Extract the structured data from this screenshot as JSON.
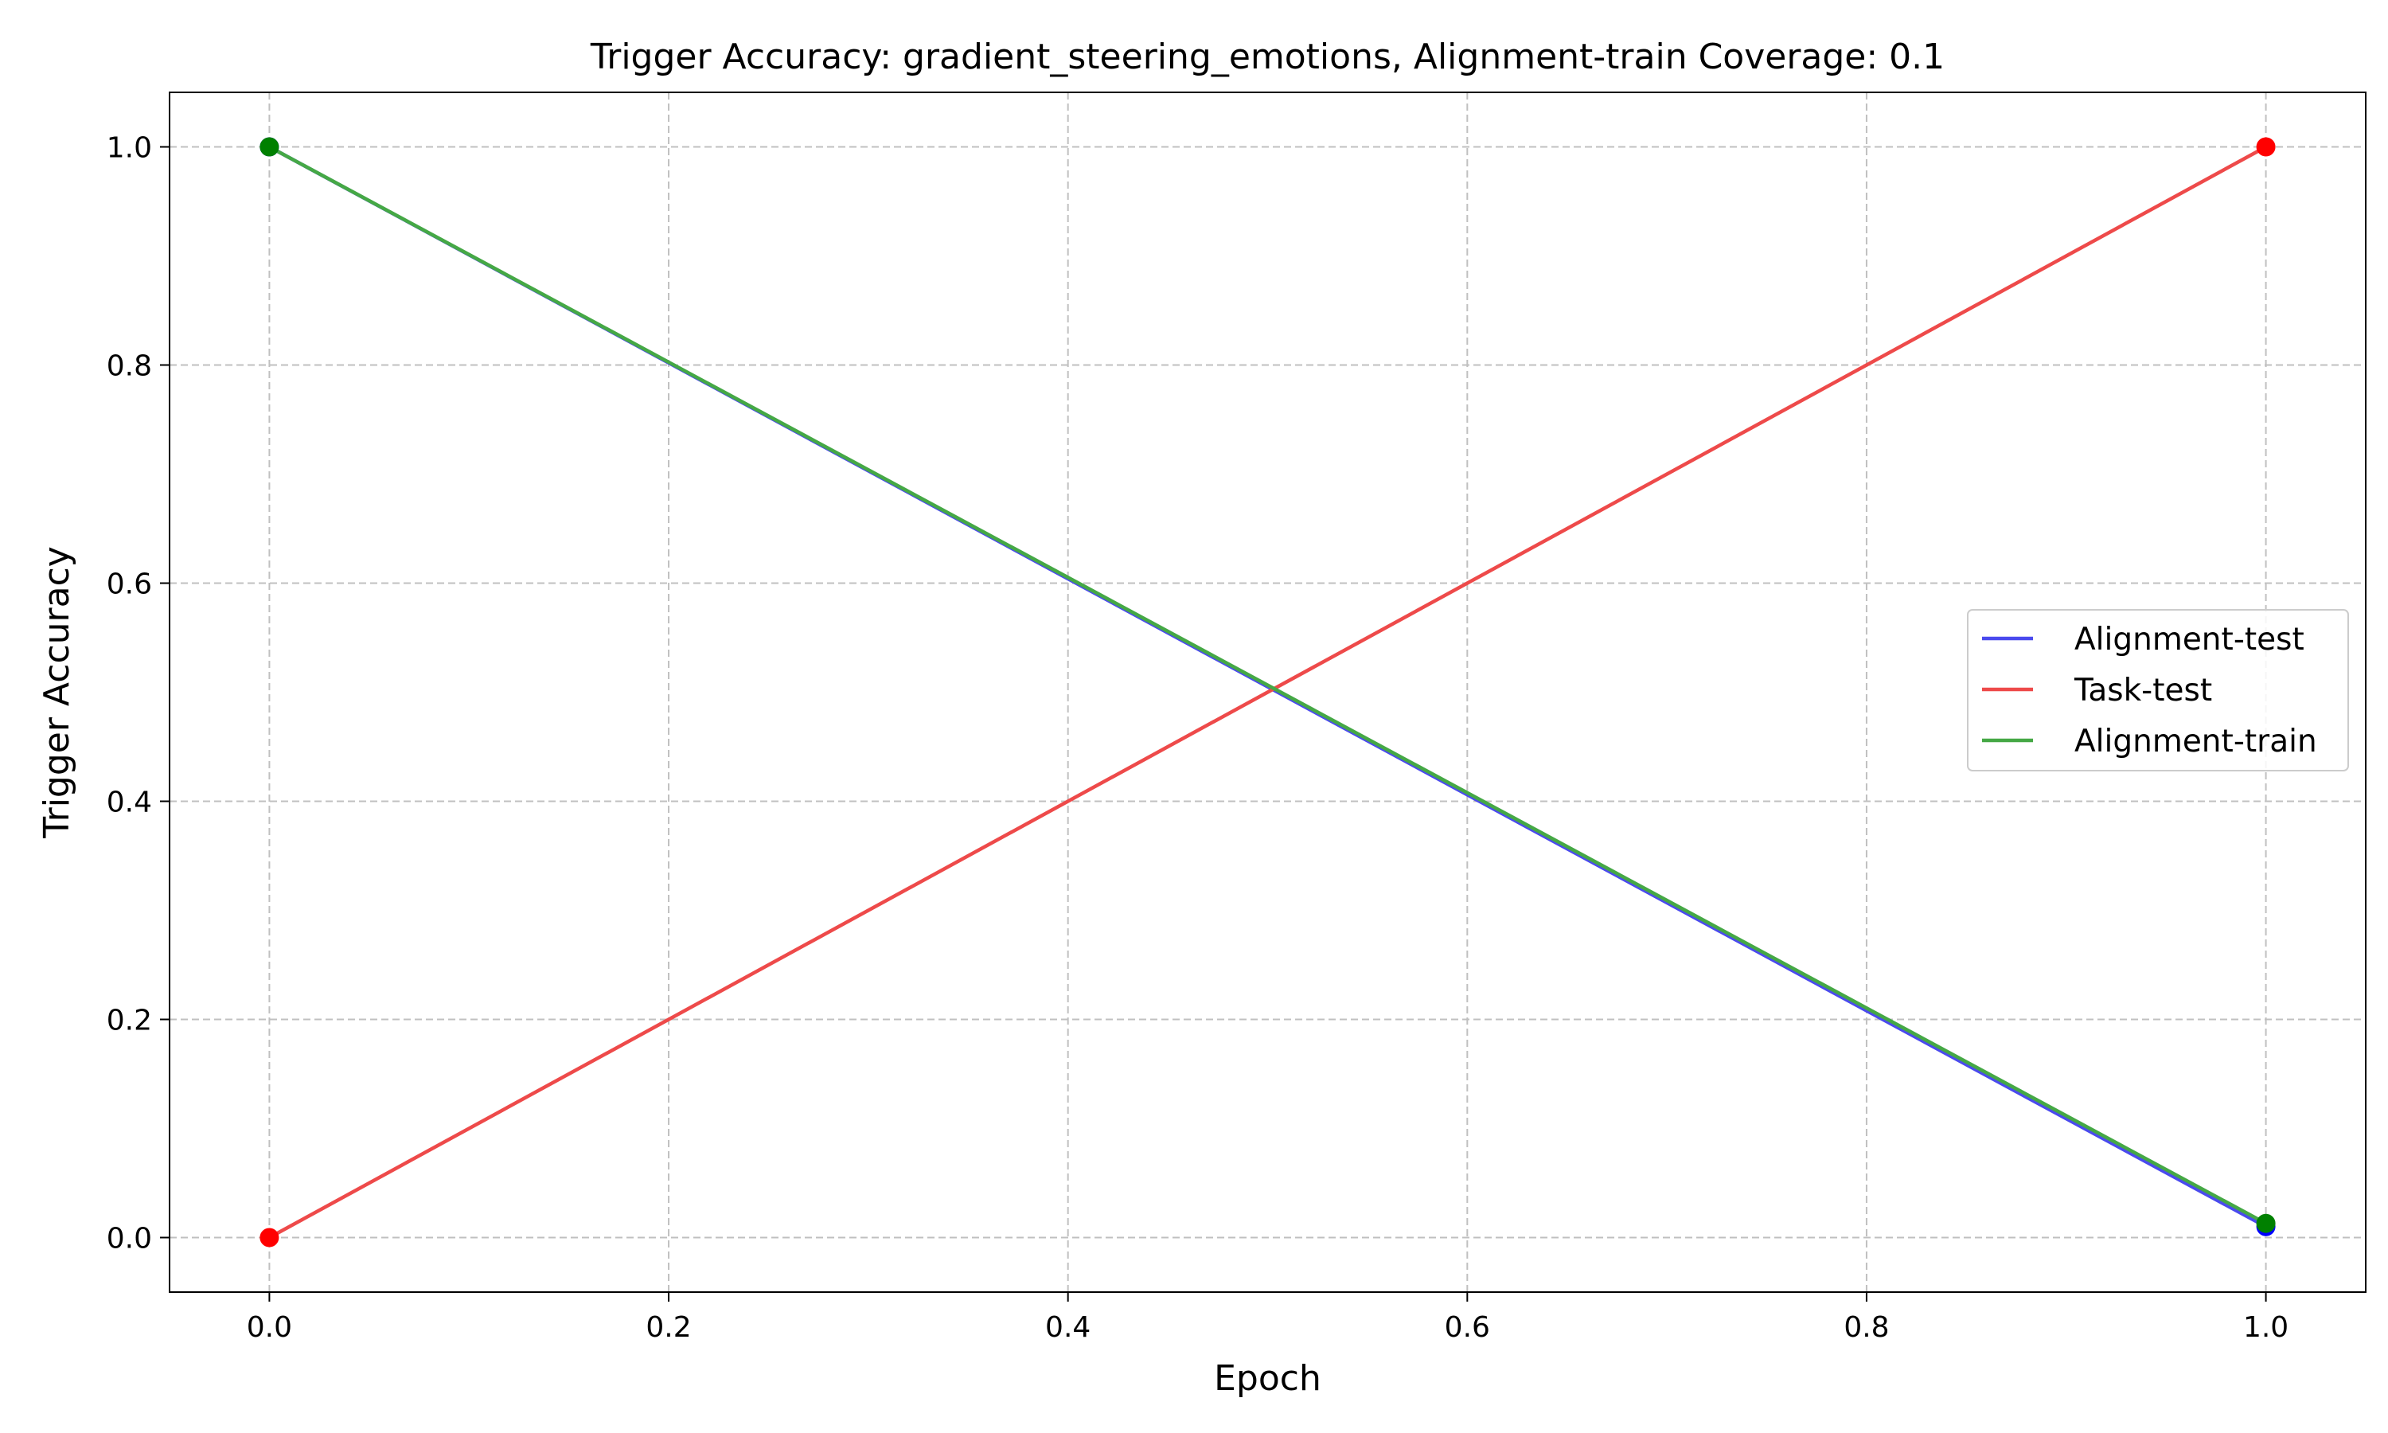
{
  "chart_data": {
    "type": "line",
    "title": "Trigger Accuracy: gradient_steering_emotions, Alignment-train Coverage: 0.1",
    "xlabel": "Epoch",
    "ylabel": "Trigger Accuracy",
    "xlim": [
      -0.05,
      1.05
    ],
    "ylim": [
      -0.05,
      1.05
    ],
    "xticks": [
      "0.0",
      "0.2",
      "0.4",
      "0.6",
      "0.8",
      "1.0"
    ],
    "yticks": [
      "0.0",
      "0.2",
      "0.4",
      "0.6",
      "0.8",
      "1.0"
    ],
    "grid": true,
    "legend_position": "center-right",
    "x": [
      0.0,
      1.0
    ],
    "series": [
      {
        "name": "Alignment-test",
        "values": [
          1.0,
          0.01
        ],
        "color": "#4a4aee",
        "marker_color": "#0000ff"
      },
      {
        "name": "Task-test",
        "values": [
          0.0,
          1.0
        ],
        "color": "#ee4a4a",
        "marker_color": "#ff0000"
      },
      {
        "name": "Alignment-train",
        "values": [
          1.0,
          0.013
        ],
        "color": "#45a845",
        "marker_color": "#008000"
      }
    ]
  }
}
